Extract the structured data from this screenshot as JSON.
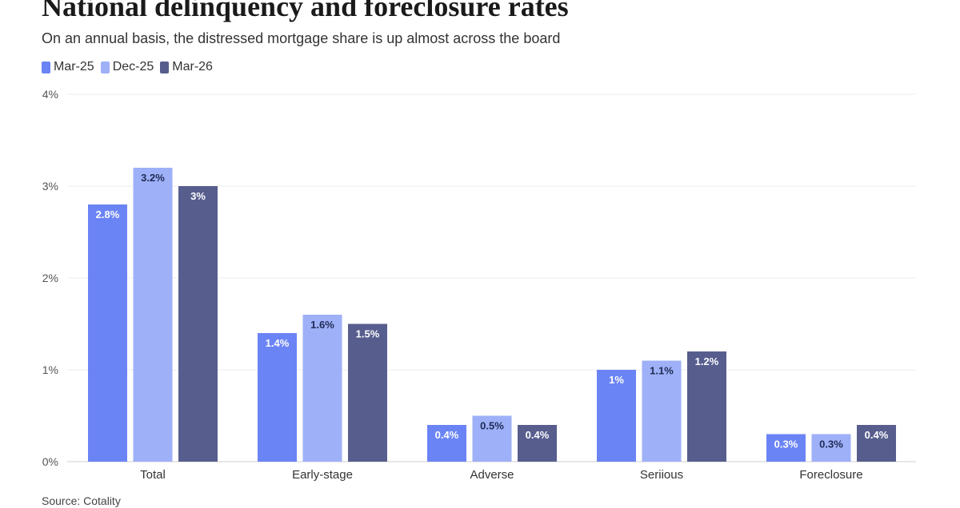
{
  "chart_data": {
    "type": "bar",
    "title": "National delinquency and foreclosure rates",
    "subtitle": "On an annual basis, the distressed mortgage share is up almost across the board",
    "categories": [
      "Total",
      "Early-stage",
      "Adverse",
      "Seriious",
      "Foreclosure"
    ],
    "series": [
      {
        "name": "Mar-25",
        "color": "#6b84f5",
        "values": [
          2.8,
          1.4,
          0.4,
          1.0,
          0.3
        ],
        "labels": [
          "2.8%",
          "1.4%",
          "0.4%",
          "1%",
          "0.3%"
        ]
      },
      {
        "name": "Dec-25",
        "color": "#9eb0f7",
        "values": [
          3.2,
          1.6,
          0.5,
          1.1,
          0.3
        ],
        "labels": [
          "3.2%",
          "1.6%",
          "0.5%",
          "1.1%",
          "0.3%"
        ]
      },
      {
        "name": "Mar-26",
        "color": "#575e8e",
        "values": [
          3.0,
          1.5,
          0.4,
          1.2,
          0.4
        ],
        "labels": [
          "3%",
          "1.5%",
          "0.4%",
          "1.2%",
          "0.4%"
        ]
      }
    ],
    "ylim": [
      0,
      4
    ],
    "yticks": [
      0,
      1,
      2,
      3,
      4
    ],
    "ytick_labels": [
      "0%",
      "1%",
      "2%",
      "3%",
      "4%"
    ],
    "xlabel": "",
    "ylabel": "",
    "grid": true,
    "legend_position": "top-left",
    "source": "Source: Cotality"
  }
}
